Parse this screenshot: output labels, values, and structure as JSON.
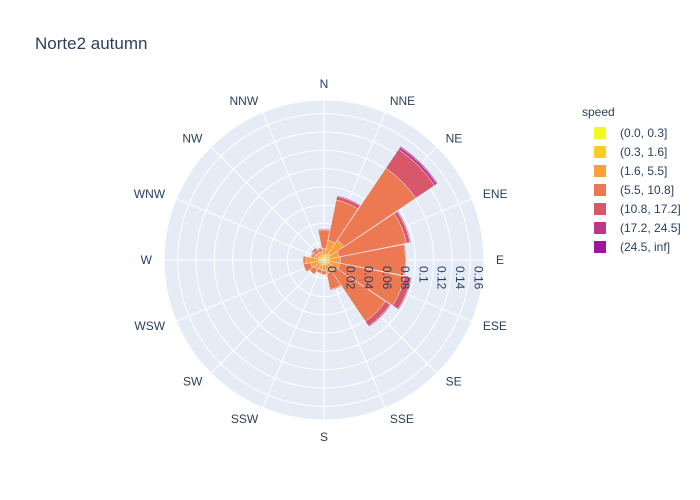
{
  "chart_data": {
    "type": "barpolar",
    "title": "Norte2 autumn",
    "legend_title": "speed",
    "legend_position": "right",
    "directions": [
      "N",
      "NNE",
      "NE",
      "ENE",
      "E",
      "ESE",
      "SE",
      "SSE",
      "S",
      "SSW",
      "SW",
      "WSW",
      "W",
      "WNW",
      "NW",
      "NNW"
    ],
    "radial_ticks": [
      "0",
      "0.02",
      "0.04",
      "0.06",
      "0.08",
      "0.1",
      "0.12",
      "0.14",
      "0.16"
    ],
    "radial_range": [
      0,
      0.175
    ],
    "series": [
      {
        "name": "(0.0, 0.3]",
        "color": "#f0f921",
        "values": [
          0.001,
          0.001,
          0.001,
          0.001,
          0.001,
          0.001,
          0.001,
          0.001,
          0.001,
          0.001,
          0.001,
          0.001,
          0.001,
          0.001,
          0.001,
          0.001
        ]
      },
      {
        "name": "(0.3, 1.6]",
        "color": "#fdca26",
        "values": [
          0.004,
          0.006,
          0.007,
          0.005,
          0.005,
          0.005,
          0.004,
          0.004,
          0.004,
          0.004,
          0.004,
          0.004,
          0.005,
          0.004,
          0.004,
          0.004
        ]
      },
      {
        "name": "(1.6, 5.5]",
        "color": "#fb9f3a",
        "values": [
          0.008,
          0.015,
          0.018,
          0.011,
          0.012,
          0.012,
          0.01,
          0.01,
          0.007,
          0.006,
          0.008,
          0.01,
          0.014,
          0.006,
          0.005,
          0.004
        ]
      },
      {
        "name": "(5.5, 10.8]",
        "color": "#ed7953",
        "values": [
          0.02,
          0.045,
          0.095,
          0.075,
          0.071,
          0.072,
          0.066,
          0.018,
          0.004,
          0.004,
          0.006,
          0.008,
          0.003,
          0.003,
          0.004,
          0.004
        ]
      },
      {
        "name": "(10.8, 17.2]",
        "color": "#d8576b",
        "values": [
          0.001,
          0.004,
          0.025,
          0.004,
          0.001,
          0.007,
          0.006,
          0.001,
          0.0,
          0.0,
          0.0,
          0.0,
          0.0,
          0.001,
          0.002,
          0.001
        ]
      },
      {
        "name": "(17.2, 24.5]",
        "color": "#bd3786",
        "values": [
          0.0,
          0.001,
          0.003,
          0.001,
          0.0,
          0.001,
          0.001,
          0.0,
          0.0,
          0.0,
          0.0,
          0.0,
          0.0,
          0.0,
          0.0,
          0.0
        ]
      },
      {
        "name": "(24.5, inf]",
        "color": "#9c179e",
        "values": [
          0.0,
          0.0,
          0.001,
          0.0,
          0.0,
          0.0,
          0.0,
          0.0,
          0.0,
          0.0,
          0.0,
          0.0,
          0.0,
          0.0,
          0.0,
          0.0
        ]
      }
    ]
  },
  "colors": {
    "polar_bg": "#e5ecf6",
    "grid": "#ffffff",
    "text": "#2a3f5f"
  }
}
